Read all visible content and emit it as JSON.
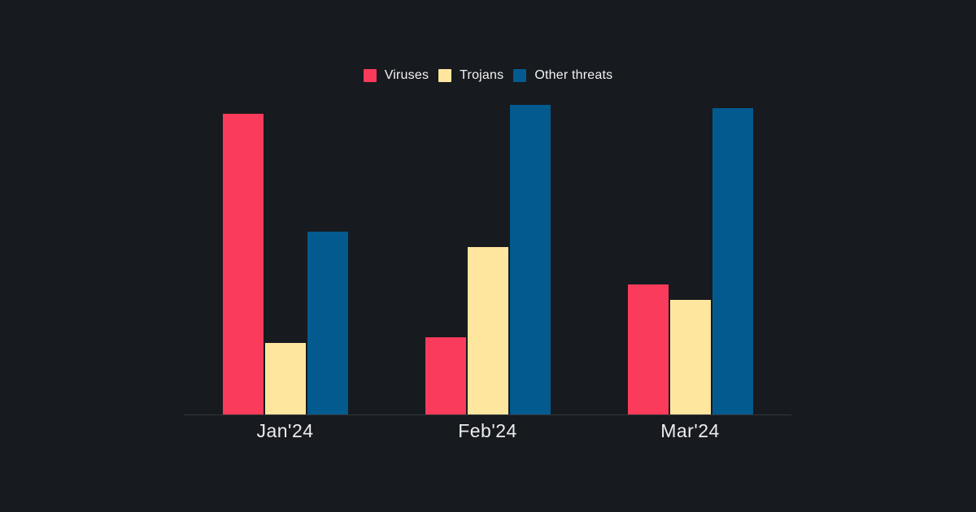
{
  "theme": {
    "background": "#171a1e",
    "axis_line_color": "rgba(255,255,255,0.12)",
    "label_color": "#ededed",
    "legend_text_color": "#f3f3f3"
  },
  "chart_data": {
    "type": "bar",
    "title": "",
    "xlabel": "",
    "ylabel": "",
    "categories": [
      "Jan'24",
      "Feb'24",
      "Mar'24"
    ],
    "series": [
      {
        "name": "Viruses",
        "color": "#fa3b5b",
        "values": [
          97,
          25,
          42
        ]
      },
      {
        "name": "Trojans",
        "color": "#ffe69e",
        "values": [
          23,
          54,
          37
        ]
      },
      {
        "name": "Other threats",
        "color": "#035a8e",
        "values": [
          59,
          100,
          99
        ]
      }
    ],
    "ylim": [
      0,
      105
    ],
    "grid": false,
    "y_axis_visible": false,
    "legend_position": "top"
  }
}
